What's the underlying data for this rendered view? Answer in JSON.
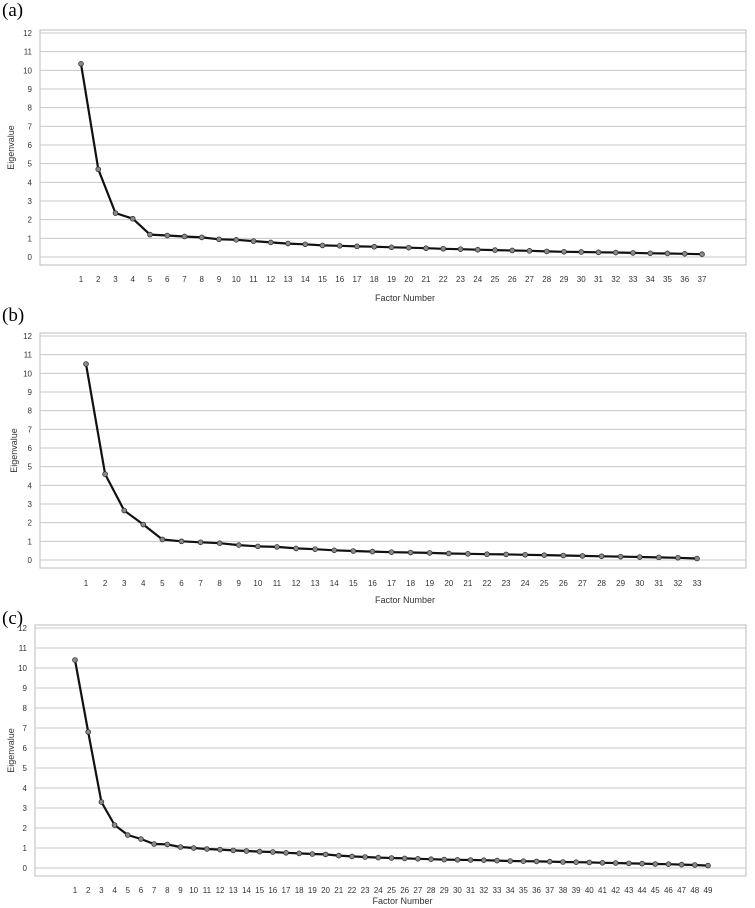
{
  "chart_data": [
    {
      "panel_label": "(a)",
      "type": "line",
      "xlabel": "Factor Number",
      "ylabel": "Eigenvalue",
      "ylim": [
        0,
        12
      ],
      "yticks": [
        0,
        1,
        2,
        3,
        4,
        5,
        6,
        7,
        8,
        9,
        10,
        11,
        12
      ],
      "grid": "horizontal",
      "x": [
        1,
        2,
        3,
        4,
        5,
        6,
        7,
        8,
        9,
        10,
        11,
        12,
        13,
        14,
        15,
        16,
        17,
        18,
        19,
        20,
        21,
        22,
        23,
        24,
        25,
        26,
        27,
        28,
        29,
        30,
        31,
        32,
        33,
        34,
        35,
        36,
        37
      ],
      "values": [
        10.35,
        4.7,
        2.35,
        2.05,
        1.2,
        1.15,
        1.1,
        1.05,
        0.95,
        0.92,
        0.85,
        0.78,
        0.72,
        0.68,
        0.62,
        0.6,
        0.57,
        0.55,
        0.52,
        0.5,
        0.47,
        0.44,
        0.42,
        0.39,
        0.37,
        0.35,
        0.33,
        0.3,
        0.28,
        0.27,
        0.25,
        0.24,
        0.22,
        0.2,
        0.19,
        0.17,
        0.15
      ]
    },
    {
      "panel_label": "(b)",
      "type": "line",
      "xlabel": "Factor Number",
      "ylabel": "Eigenvalue",
      "ylim": [
        0,
        12
      ],
      "yticks": [
        0,
        1,
        2,
        3,
        4,
        5,
        6,
        7,
        8,
        9,
        10,
        11,
        12
      ],
      "grid": "horizontal",
      "x": [
        1,
        2,
        3,
        4,
        5,
        6,
        7,
        8,
        9,
        10,
        11,
        12,
        13,
        14,
        15,
        16,
        17,
        18,
        19,
        20,
        21,
        22,
        23,
        24,
        25,
        26,
        27,
        28,
        29,
        30,
        31,
        32,
        33
      ],
      "values": [
        10.5,
        4.6,
        2.65,
        1.9,
        1.1,
        1.0,
        0.95,
        0.9,
        0.8,
        0.73,
        0.7,
        0.62,
        0.58,
        0.52,
        0.48,
        0.45,
        0.42,
        0.4,
        0.38,
        0.35,
        0.33,
        0.31,
        0.3,
        0.28,
        0.26,
        0.24,
        0.22,
        0.2,
        0.18,
        0.16,
        0.14,
        0.12,
        0.08
      ]
    },
    {
      "panel_label": "(c)",
      "type": "line",
      "xlabel": "Factor Number",
      "ylabel": "Eigenvalue",
      "ylim": [
        0,
        12
      ],
      "yticks": [
        0,
        1,
        2,
        3,
        4,
        5,
        6,
        7,
        8,
        9,
        10,
        11,
        12
      ],
      "grid": "horizontal",
      "x": [
        1,
        2,
        3,
        4,
        5,
        6,
        7,
        8,
        9,
        10,
        11,
        12,
        13,
        14,
        15,
        16,
        17,
        18,
        19,
        20,
        21,
        22,
        23,
        24,
        25,
        26,
        27,
        28,
        29,
        30,
        31,
        32,
        33,
        34,
        35,
        36,
        37,
        38,
        39,
        40,
        41,
        42,
        43,
        44,
        45,
        46,
        47,
        48,
        49
      ],
      "values": [
        10.4,
        6.8,
        3.3,
        2.15,
        1.65,
        1.45,
        1.2,
        1.18,
        1.05,
        1.0,
        0.95,
        0.92,
        0.88,
        0.85,
        0.82,
        0.8,
        0.76,
        0.73,
        0.7,
        0.68,
        0.62,
        0.58,
        0.55,
        0.52,
        0.5,
        0.48,
        0.46,
        0.44,
        0.42,
        0.41,
        0.4,
        0.39,
        0.37,
        0.35,
        0.34,
        0.33,
        0.32,
        0.3,
        0.29,
        0.28,
        0.26,
        0.25,
        0.23,
        0.22,
        0.2,
        0.19,
        0.17,
        0.15,
        0.12
      ]
    }
  ]
}
